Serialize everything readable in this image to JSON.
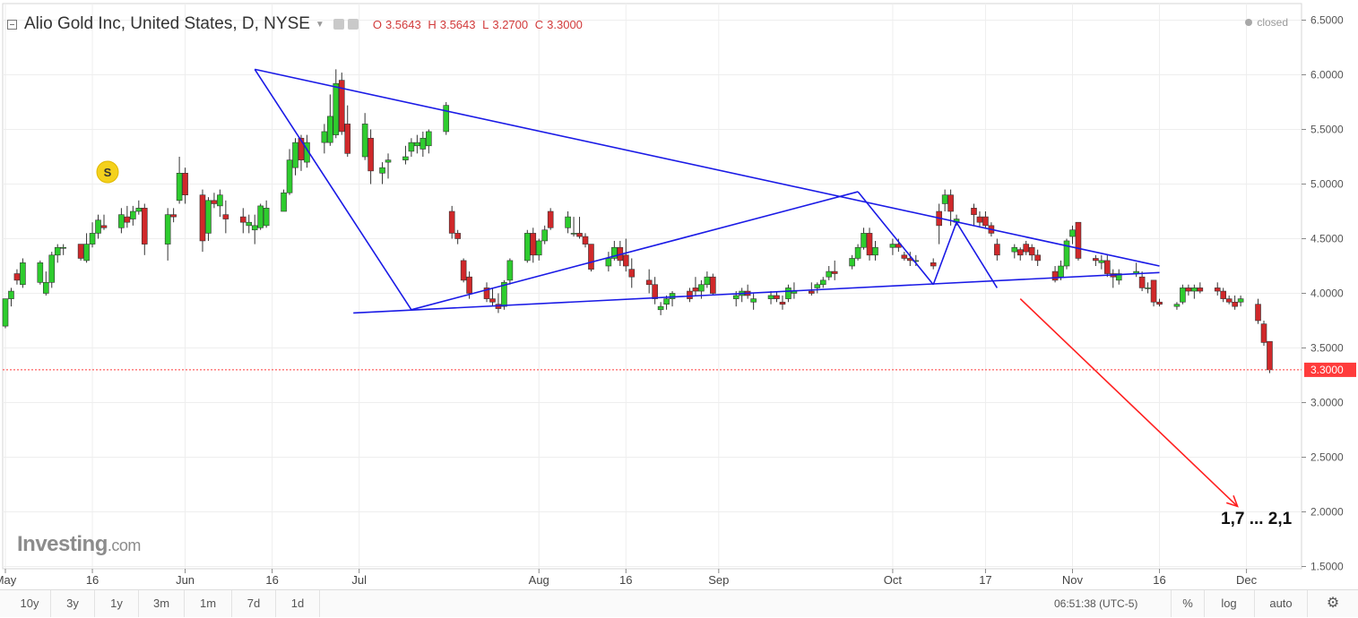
{
  "header": {
    "symbol_title": "Alio Gold Inc, United States, D, NYSE",
    "ohlc": {
      "o_label": "O",
      "o": "3.5643",
      "h_label": "H",
      "h": "3.5643",
      "l_label": "L",
      "l": "3.2700",
      "c_label": "C",
      "c": "3.3000"
    },
    "status": "closed"
  },
  "colors": {
    "up": "#2ecc2e",
    "down": "#d0282a",
    "trendline": "#1a1ae6",
    "projection": "#ff2020",
    "last_price": "#ff3b3b",
    "grid": "#eeeeee"
  },
  "watermark": {
    "brand": "Investing",
    "suffix": ".com"
  },
  "toolbar": {
    "ranges": [
      "10y",
      "3y",
      "1y",
      "3m",
      "1m",
      "7d",
      "1d"
    ],
    "clock": "06:51:38",
    "timezone": "(UTC-5)",
    "percent": "%",
    "log": "log",
    "auto": "auto"
  },
  "chart_data": {
    "type": "candlestick",
    "title": "Alio Gold Inc, United States, D, NYSE",
    "y_ticks": [
      "6.5000",
      "6.0000",
      "5.5000",
      "5.0000",
      "4.5000",
      "4.0000",
      "3.5000",
      "3.0000",
      "2.5000",
      "2.0000",
      "1.5000"
    ],
    "x_ticks": [
      "May",
      "16",
      "Jun",
      "16",
      "Jul",
      "Aug",
      "16",
      "Sep",
      "Oct",
      "17",
      "Nov",
      "16",
      "Dec"
    ],
    "ylim": [
      1.45,
      6.6
    ],
    "grid": true,
    "last_price": "3.3000",
    "annotation": "1,7 ... 2,1",
    "earnings_marker": "S",
    "candles": [
      [
        3.7,
        3.95,
        3.68,
        3.95
      ],
      [
        3.95,
        4.05,
        3.88,
        4.02
      ],
      [
        4.18,
        4.22,
        4.08,
        4.12
      ],
      [
        4.08,
        4.32,
        4.05,
        4.28
      ],
      [
        4.1,
        4.3,
        4.08,
        4.28
      ],
      [
        4.0,
        4.2,
        3.98,
        4.1
      ],
      [
        4.1,
        4.38,
        4.05,
        4.35
      ],
      [
        4.35,
        4.45,
        4.28,
        4.42
      ],
      [
        4.42,
        4.45,
        4.35,
        4.42
      ],
      [
        4.45,
        4.45,
        4.3,
        4.32
      ],
      [
        4.3,
        4.55,
        4.28,
        4.45
      ],
      [
        4.45,
        4.65,
        4.42,
        4.55
      ],
      [
        4.55,
        4.72,
        4.5,
        4.67
      ],
      [
        4.62,
        4.72,
        4.58,
        4.6
      ],
      [
        4.6,
        4.78,
        4.55,
        4.72
      ],
      [
        4.7,
        4.8,
        4.6,
        4.65
      ],
      [
        4.68,
        4.8,
        4.62,
        4.75
      ],
      [
        4.75,
        4.85,
        4.72,
        4.78
      ],
      [
        4.78,
        4.82,
        4.35,
        4.45
      ],
      [
        4.45,
        4.78,
        4.3,
        4.72
      ],
      [
        4.72,
        4.78,
        4.65,
        4.7
      ],
      [
        4.85,
        5.25,
        4.82,
        5.1
      ],
      [
        5.1,
        5.15,
        4.82,
        4.9
      ],
      [
        4.9,
        4.95,
        4.38,
        4.48
      ],
      [
        4.55,
        4.88,
        4.48,
        4.85
      ],
      [
        4.85,
        4.92,
        4.78,
        4.82
      ],
      [
        4.8,
        4.95,
        4.7,
        4.9
      ],
      [
        4.72,
        4.85,
        4.55,
        4.68
      ],
      [
        4.7,
        4.78,
        4.55,
        4.65
      ],
      [
        4.62,
        4.72,
        4.55,
        4.65
      ],
      [
        4.58,
        4.72,
        4.45,
        4.62
      ],
      [
        4.6,
        4.82,
        4.58,
        4.8
      ],
      [
        4.62,
        4.85,
        4.6,
        4.78
      ],
      [
        4.75,
        4.95,
        4.75,
        4.92
      ],
      [
        4.92,
        5.32,
        4.9,
        5.22
      ],
      [
        5.15,
        5.42,
        5.08,
        5.38
      ],
      [
        5.42,
        5.45,
        5.12,
        5.22
      ],
      [
        5.2,
        5.45,
        5.15,
        5.38
      ],
      [
        5.38,
        5.55,
        5.28,
        5.48
      ],
      [
        5.38,
        5.82,
        5.35,
        5.62
      ],
      [
        5.45,
        6.05,
        5.42,
        5.92
      ],
      [
        5.95,
        6.02,
        5.45,
        5.48
      ],
      [
        5.55,
        5.72,
        5.25,
        5.28
      ],
      [
        5.25,
        5.65,
        5.22,
        5.55
      ],
      [
        5.42,
        5.5,
        5.0,
        5.12
      ],
      [
        5.1,
        5.2,
        5.0,
        5.15
      ],
      [
        5.2,
        5.28,
        5.05,
        5.22
      ],
      [
        5.22,
        5.35,
        5.18,
        5.25
      ],
      [
        5.3,
        5.42,
        5.25,
        5.38
      ],
      [
        5.35,
        5.45,
        5.28,
        5.38
      ],
      [
        5.32,
        5.48,
        5.25,
        5.42
      ],
      [
        5.35,
        5.5,
        5.28,
        5.48
      ],
      [
        5.48,
        5.75,
        5.45,
        5.72
      ],
      [
        4.75,
        4.8,
        4.5,
        4.55
      ],
      [
        4.55,
        4.58,
        4.45,
        4.5
      ],
      [
        4.3,
        4.32,
        4.1,
        4.12
      ],
      [
        4.15,
        4.2,
        3.95,
        4.0
      ],
      [
        4.05,
        4.1,
        3.92,
        3.95
      ],
      [
        3.95,
        4.05,
        3.88,
        3.92
      ],
      [
        3.9,
        4.0,
        3.82,
        3.86
      ],
      [
        3.88,
        4.12,
        3.85,
        4.1
      ],
      [
        4.12,
        4.32,
        4.08,
        4.3
      ],
      [
        4.3,
        4.58,
        4.28,
        4.55
      ],
      [
        4.55,
        4.6,
        4.28,
        4.35
      ],
      [
        4.35,
        4.5,
        4.3,
        4.48
      ],
      [
        4.48,
        4.62,
        4.45,
        4.58
      ],
      [
        4.75,
        4.78,
        4.58,
        4.6
      ],
      [
        4.6,
        4.75,
        4.55,
        4.7
      ],
      [
        4.55,
        4.7,
        4.52,
        4.55
      ],
      [
        4.55,
        4.7,
        4.5,
        4.52
      ],
      [
        4.52,
        4.55,
        4.42,
        4.45
      ],
      [
        4.45,
        4.45,
        4.2,
        4.22
      ],
      [
        4.25,
        4.38,
        4.2,
        4.32
      ],
      [
        4.32,
        4.48,
        4.3,
        4.42
      ],
      [
        4.42,
        4.48,
        4.25,
        4.3
      ],
      [
        4.35,
        4.5,
        4.2,
        4.25
      ],
      [
        4.22,
        4.32,
        4.05,
        4.15
      ],
      [
        4.12,
        4.22,
        4.0,
        4.08
      ],
      [
        4.08,
        4.15,
        3.9,
        3.95
      ],
      [
        3.85,
        3.92,
        3.8,
        3.88
      ],
      [
        3.9,
        3.98,
        3.85,
        3.95
      ],
      [
        3.95,
        4.02,
        3.88,
        4.0
      ],
      [
        4.02,
        4.05,
        3.92,
        3.95
      ],
      [
        4.05,
        4.15,
        3.98,
        4.02
      ],
      [
        4.02,
        4.12,
        3.95,
        4.08
      ],
      [
        4.08,
        4.2,
        4.05,
        4.15
      ],
      [
        4.15,
        4.18,
        3.98,
        4.0
      ],
      [
        3.95,
        4.02,
        3.88,
        3.98
      ],
      [
        3.98,
        4.05,
        3.92,
        4.02
      ],
      [
        4.02,
        4.08,
        3.95,
        3.98
      ],
      [
        3.92,
        4.0,
        3.85,
        3.95
      ],
      [
        3.95,
        4.02,
        3.9,
        3.98
      ],
      [
        3.98,
        4.02,
        3.92,
        3.95
      ],
      [
        3.92,
        3.98,
        3.85,
        3.9
      ],
      [
        3.95,
        4.08,
        3.92,
        4.05
      ],
      [
        4.0,
        4.1,
        3.95,
        4.02
      ],
      [
        4.02,
        4.1,
        3.98,
        4.0
      ],
      [
        4.05,
        4.1,
        4.0,
        4.08
      ],
      [
        4.08,
        4.15,
        4.05,
        4.12
      ],
      [
        4.15,
        4.25,
        4.12,
        4.2
      ],
      [
        4.2,
        4.3,
        4.12,
        4.18
      ],
      [
        4.25,
        4.35,
        4.22,
        4.32
      ],
      [
        4.32,
        4.45,
        4.3,
        4.42
      ],
      [
        4.42,
        4.6,
        4.4,
        4.55
      ],
      [
        4.55,
        4.6,
        4.3,
        4.35
      ],
      [
        4.35,
        4.48,
        4.3,
        4.42
      ],
      [
        4.42,
        4.5,
        4.35,
        4.45
      ],
      [
        4.45,
        4.5,
        4.38,
        4.42
      ],
      [
        4.35,
        4.38,
        4.3,
        4.32
      ],
      [
        4.32,
        4.38,
        4.25,
        4.3
      ],
      [
        4.3,
        4.35,
        4.25,
        4.3
      ],
      [
        4.28,
        4.32,
        4.22,
        4.25
      ],
      [
        4.75,
        4.82,
        4.45,
        4.62
      ],
      [
        4.82,
        4.95,
        4.75,
        4.9
      ],
      [
        4.9,
        4.95,
        4.62,
        4.75
      ],
      [
        4.65,
        4.72,
        4.62,
        4.68
      ],
      [
        4.78,
        4.82,
        4.62,
        4.72
      ],
      [
        4.7,
        4.75,
        4.6,
        4.65
      ],
      [
        4.7,
        4.75,
        4.6,
        4.62
      ],
      [
        4.62,
        4.65,
        4.52,
        4.55
      ],
      [
        4.45,
        4.5,
        4.3,
        4.35
      ],
      [
        4.38,
        4.45,
        4.32,
        4.42
      ],
      [
        4.4,
        4.42,
        4.3,
        4.35
      ],
      [
        4.45,
        4.48,
        4.35,
        4.38
      ],
      [
        4.42,
        4.45,
        4.3,
        4.35
      ],
      [
        4.35,
        4.4,
        4.25,
        4.3
      ],
      [
        4.2,
        4.25,
        4.1,
        4.12
      ],
      [
        4.15,
        4.3,
        4.12,
        4.25
      ],
      [
        4.25,
        4.5,
        4.22,
        4.48
      ],
      [
        4.52,
        4.62,
        4.45,
        4.58
      ],
      [
        4.65,
        4.65,
        4.3,
        4.32
      ],
      [
        4.32,
        4.35,
        4.25,
        4.3
      ],
      [
        4.28,
        4.35,
        4.22,
        4.3
      ],
      [
        4.3,
        4.35,
        4.15,
        4.18
      ],
      [
        4.18,
        4.22,
        4.05,
        4.15
      ],
      [
        4.12,
        4.22,
        4.08,
        4.18
      ],
      [
        4.18,
        4.28,
        4.15,
        4.2
      ],
      [
        4.15,
        4.2,
        4.02,
        4.05
      ],
      [
        4.05,
        4.1,
        4.0,
        4.05
      ],
      [
        4.12,
        4.12,
        3.88,
        3.92
      ],
      [
        3.92,
        3.95,
        3.88,
        3.9
      ],
      [
        3.88,
        3.92,
        3.85,
        3.9
      ],
      [
        3.92,
        4.08,
        3.9,
        4.05
      ],
      [
        4.05,
        4.08,
        3.98,
        4.02
      ],
      [
        4.02,
        4.08,
        3.95,
        4.05
      ],
      [
        4.05,
        4.1,
        4.0,
        4.02
      ],
      [
        4.05,
        4.1,
        3.98,
        4.02
      ],
      [
        4.02,
        4.05,
        3.92,
        3.95
      ],
      [
        3.95,
        3.98,
        3.9,
        3.92
      ],
      [
        3.92,
        3.98,
        3.85,
        3.88
      ],
      [
        3.92,
        3.98,
        3.88,
        3.95
      ],
      [
        3.9,
        3.95,
        3.72,
        3.75
      ],
      [
        3.72,
        3.75,
        3.52,
        3.55
      ],
      [
        3.56,
        3.56,
        3.27,
        3.3
      ]
    ],
    "trendlines": [
      {
        "from": [
          "Jun 13",
          6.05
        ],
        "to": [
          "Nov 16",
          4.25
        ]
      },
      {
        "from": [
          "Jun 13",
          6.05
        ],
        "to": [
          "Jul 10",
          3.85
        ]
      },
      {
        "from": [
          "Jun 30",
          3.82
        ],
        "to": [
          "Nov 16",
          4.19
        ]
      },
      {
        "from": [
          "Jul 10",
          3.85
        ],
        "to": [
          "Sep 25",
          4.93
        ]
      },
      {
        "from": [
          "Sep 25",
          4.93
        ],
        "to": [
          "Oct 8",
          4.08
        ]
      },
      {
        "from": [
          "Oct 8",
          4.08
        ],
        "to": [
          "Oct 12",
          4.65
        ]
      },
      {
        "from": [
          "Oct 12",
          4.65
        ],
        "to": [
          "Oct 19",
          4.05
        ]
      }
    ],
    "projection": {
      "from": [
        "Oct 23",
        3.95
      ],
      "to": [
        "Dec",
        2.05
      ]
    }
  }
}
